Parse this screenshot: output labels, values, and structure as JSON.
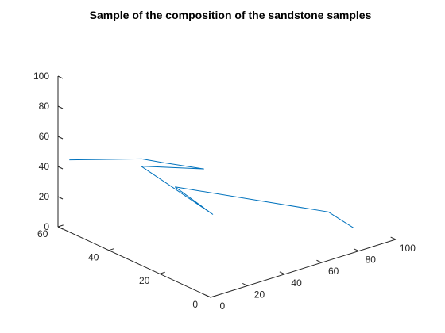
{
  "chart_data": {
    "type": "line",
    "projection": "3d",
    "title": "Sample of the composition of the sandstone samples",
    "xlabel": "",
    "ylabel": "",
    "zlabel": "",
    "xlim": [
      0,
      100
    ],
    "ylim": [
      0,
      60
    ],
    "zlim": [
      0,
      100
    ],
    "x_ticks": [
      "0",
      "20",
      "40",
      "60",
      "80",
      "100"
    ],
    "y_ticks": [
      "0",
      "20",
      "40",
      "60"
    ],
    "z_ticks": [
      "0",
      "20",
      "40",
      "60",
      "80",
      "100"
    ],
    "grid": false,
    "series": [
      {
        "color": "#0072BD",
        "x": [
          84,
          87,
          55,
          48,
          27,
          39,
          30,
          26,
          2
        ],
        "y": [
          5,
          17,
          54,
          34,
          47,
          31,
          41,
          46,
          57
        ],
        "z": [
          10,
          10,
          10,
          10,
          40,
          46,
          46,
          46,
          46
        ]
      }
    ]
  }
}
